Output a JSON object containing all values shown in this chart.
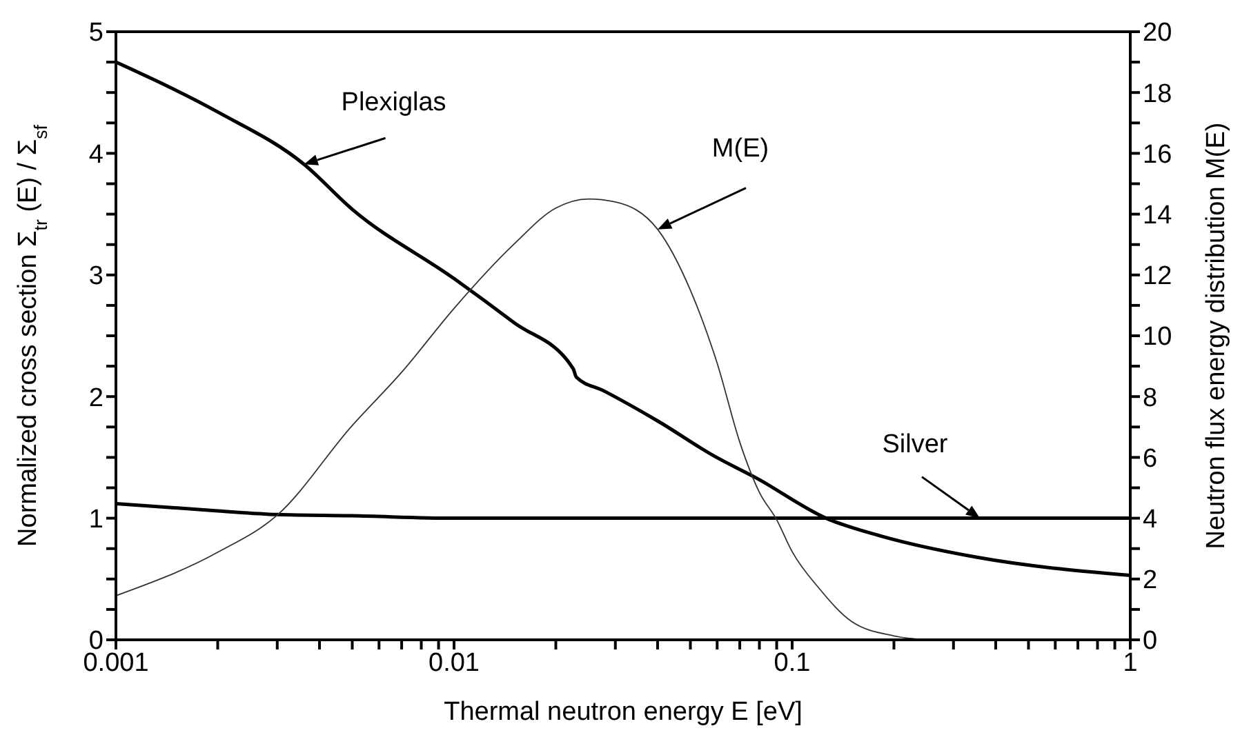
{
  "chart_data": {
    "type": "line",
    "xlabel": "Thermal neutron energy  E  [eV]",
    "ylabel": "Normalized cross section  Σ$_{tr}$(E) / Σ$_{sf}$",
    "y2label": "Neutron flux energy distribution  M(E)",
    "log": "x",
    "xlim": [
      0.001,
      1
    ],
    "ylim": [
      0,
      5
    ],
    "y2lim": [
      0,
      20
    ],
    "xticks": [
      0.001,
      {
        "value": 0.002,
        "label": null
      },
      {
        "value": 0.003,
        "label": null
      },
      {
        "value": 0.004,
        "label": null
      },
      {
        "value": 0.005,
        "label": null
      },
      {
        "value": 0.006,
        "label": null
      },
      {
        "value": 0.007,
        "label": null
      },
      {
        "value": 0.008,
        "label": null
      },
      {
        "value": 0.009,
        "label": null
      },
      0.01,
      {
        "value": 0.02,
        "label": null
      },
      {
        "value": 0.03,
        "label": null
      },
      {
        "value": 0.04,
        "label": null
      },
      {
        "value": 0.05,
        "label": null
      },
      {
        "value": 0.06,
        "label": null
      },
      {
        "value": 0.07,
        "label": null
      },
      {
        "value": 0.08,
        "label": null
      },
      {
        "value": 0.09,
        "label": null
      },
      0.1,
      {
        "value": 0.2,
        "label": null
      },
      {
        "value": 0.3,
        "label": null
      },
      {
        "value": 0.4,
        "label": null
      },
      {
        "value": 0.5,
        "label": null
      },
      {
        "value": 0.6,
        "label": null
      },
      {
        "value": 0.7,
        "label": null
      },
      {
        "value": 0.8,
        "label": null
      },
      {
        "value": 0.9,
        "label": null
      },
      1
    ],
    "yticks": [
      0,
      {
        "value": 0.25,
        "label": null
      },
      {
        "value": 0.5,
        "label": null
      },
      {
        "value": 0.75,
        "label": null
      },
      1,
      {
        "value": 1.25,
        "label": null
      },
      {
        "value": 1.5,
        "label": null
      },
      {
        "value": 1.75,
        "label": null
      },
      2,
      {
        "value": 2.25,
        "label": null
      },
      {
        "value": 2.5,
        "label": null
      },
      {
        "value": 2.75,
        "label": null
      },
      3,
      {
        "value": 3.25,
        "label": null
      },
      {
        "value": 3.5,
        "label": null
      },
      {
        "value": 3.75,
        "label": null
      },
      4,
      {
        "value": 4.25,
        "label": null
      },
      {
        "value": 4.5,
        "label": null
      },
      {
        "value": 4.75,
        "label": null
      },
      5
    ],
    "y2ticks": [
      0,
      {
        "value": 1,
        "label": null
      },
      2,
      {
        "value": 3,
        "label": null
      },
      4,
      {
        "value": 5,
        "label": null
      },
      6,
      {
        "value": 7,
        "label": null
      },
      8,
      {
        "value": 9,
        "label": null
      },
      10,
      {
        "value": 11,
        "label": null
      },
      12,
      {
        "value": 13,
        "label": null
      },
      14,
      {
        "value": 15,
        "label": null
      },
      16,
      {
        "value": 17,
        "label": null
      },
      18,
      {
        "value": 19,
        "label": null
      },
      20
    ],
    "series": [
      {
        "name": "Plexiglas",
        "color": "#000000",
        "x": [
          0.001,
          0.002,
          0.0036,
          0.005,
          0.01,
          0.015,
          0.0225,
          0.023,
          0.0276,
          0.04,
          0.0589,
          0.0784,
          0.126,
          0.185,
          0.35,
          1
        ],
        "values": [
          4.75,
          4.34,
          3.91,
          3.54,
          2.97,
          2.61,
          2.23,
          2.16,
          2.05,
          1.8,
          1.51,
          1.33,
          1.0,
          0.85,
          0.68,
          0.53
        ]
      },
      {
        "name": "Silver",
        "color": "#000000",
        "x": [
          0.001,
          0.002,
          0.003,
          0.005,
          0.01,
          0.02,
          0.05,
          0.1,
          0.359,
          1
        ],
        "values": [
          1.12,
          1.06,
          1.03,
          1.02,
          1.0,
          1.0,
          1.0,
          1.0,
          1.0,
          1.0
        ]
      },
      {
        "name": "M(E)",
        "color": "#333333",
        "axis": "y2",
        "x": [
          0.001,
          0.002,
          0.003,
          0.005,
          0.007,
          0.01,
          0.015,
          0.02,
          0.025,
          0.03,
          0.04,
          0.05,
          0.06,
          0.07,
          0.08,
          0.09,
          0.1,
          0.12,
          0.15,
          0.2,
          0.25
        ],
        "values": [
          1.45,
          2.88,
          4.1,
          7.05,
          8.8,
          10.9,
          13.0,
          14.2,
          14.5,
          14.4,
          13.5,
          11.5,
          9.1,
          6.5,
          4.85,
          3.95,
          2.9,
          1.7,
          0.6,
          0.13,
          0
        ]
      }
    ]
  }
}
